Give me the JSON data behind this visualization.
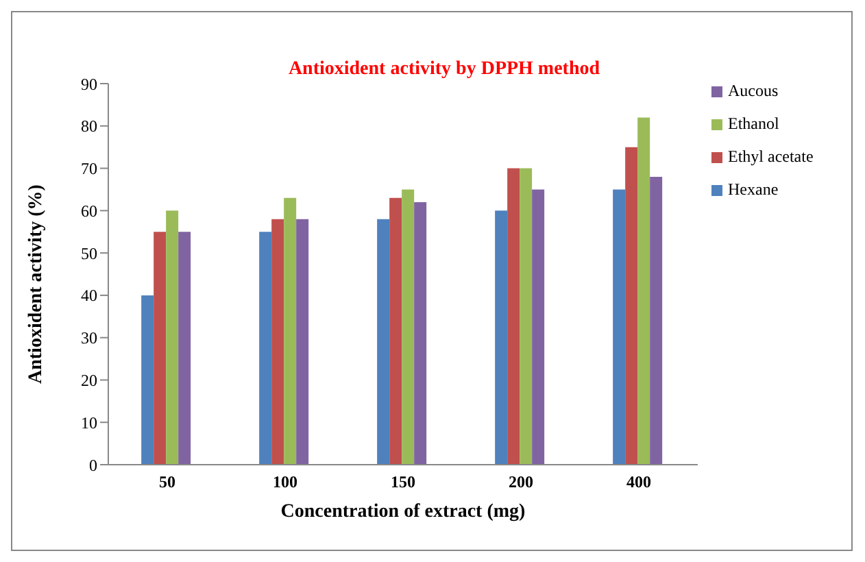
{
  "chart_data": {
    "type": "bar",
    "title": "Antioxident activity by DPPH method",
    "xlabel": "Concentration of extract (mg)",
    "ylabel": "Antioxident activity (%)",
    "categories": [
      "50",
      "100",
      "150",
      "200",
      "400"
    ],
    "series": [
      {
        "name": "Hexane",
        "color": "#4f81bd",
        "values": [
          40,
          55,
          58,
          60,
          65
        ]
      },
      {
        "name": "Ethyl acetate",
        "color": "#c0504d",
        "values": [
          55,
          58,
          63,
          70,
          75
        ]
      },
      {
        "name": "Ethanol",
        "color": "#9bbb59",
        "values": [
          60,
          63,
          65,
          70,
          82
        ]
      },
      {
        "name": "Aucous",
        "color": "#8064a2",
        "values": [
          55,
          58,
          62,
          65,
          68
        ]
      }
    ],
    "ylim": [
      0,
      90
    ],
    "yticks": [
      0,
      10,
      20,
      30,
      40,
      50,
      60,
      70,
      80,
      90
    ],
    "grid": false,
    "legend": "right"
  }
}
